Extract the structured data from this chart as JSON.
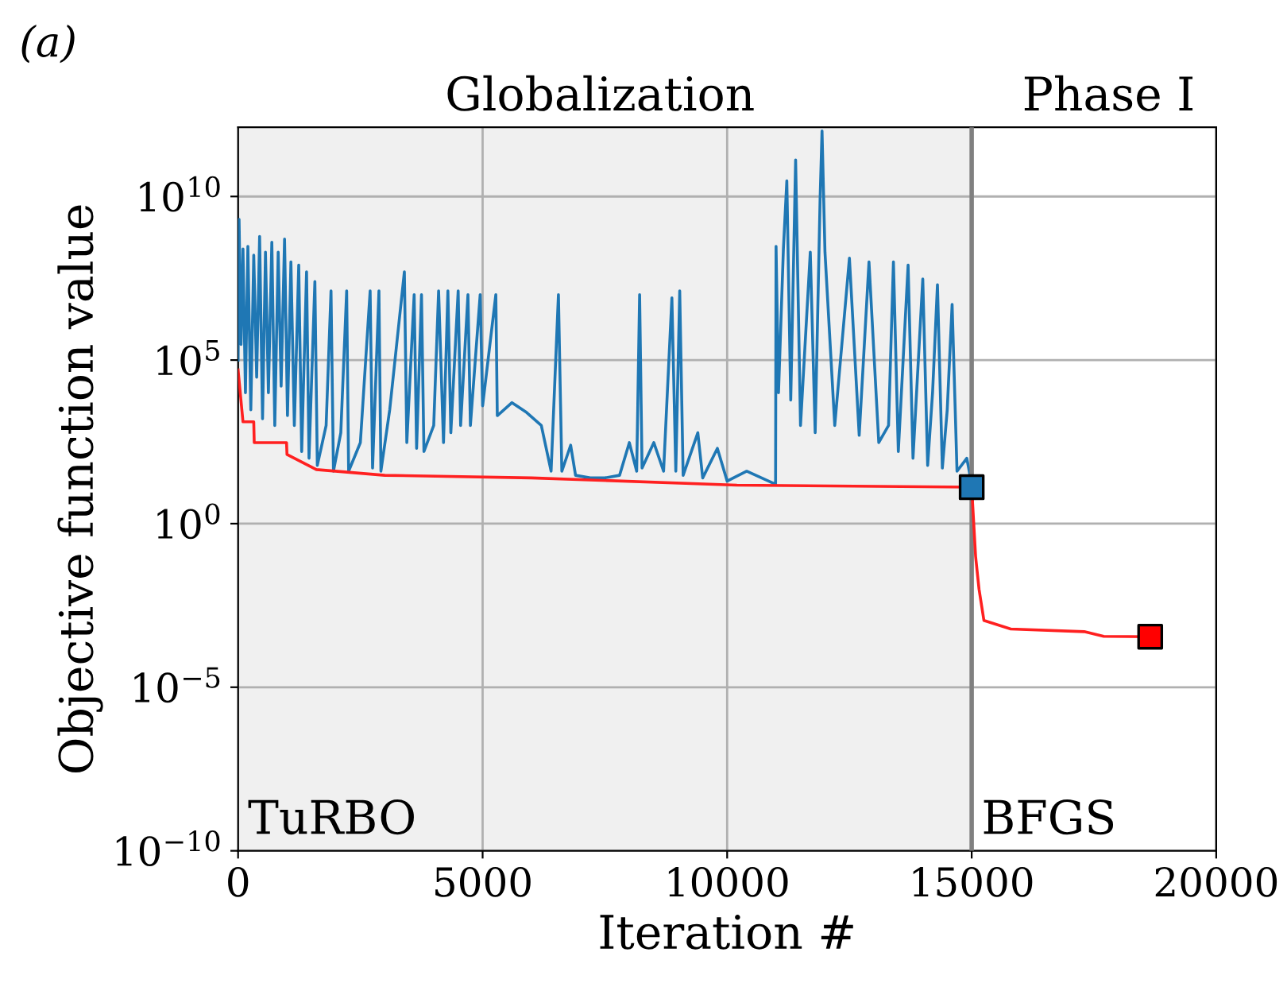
{
  "chart_data": {
    "type": "line",
    "xlabel": "Iteration #",
    "ylabel": "Objective function value",
    "annotations": [
      "(a)",
      "Globalization",
      "Phase I",
      "TuRBO",
      "BFGS"
    ],
    "series": [
      {
        "color": "#1f77b4",
        "x": [
          0,
          20,
          60,
          100,
          150,
          200,
          260,
          320,
          380,
          440,
          500,
          560,
          620,
          690,
          750,
          820,
          880,
          950,
          1010,
          1080,
          1150,
          1240,
          1300,
          1400,
          1450,
          1570,
          1620,
          1800,
          1900,
          1950,
          2100,
          2220,
          2260,
          2500,
          2700,
          2750,
          2880,
          2920,
          3100,
          3400,
          3450,
          3600,
          3650,
          3750,
          3800,
          4000,
          4100,
          4200,
          4290,
          4350,
          4500,
          4550,
          4700,
          4750,
          4950,
          5000,
          5270,
          5300,
          5600,
          5900,
          6200,
          6400,
          6550,
          6620,
          6800,
          6900,
          7200,
          7500,
          7800,
          8000,
          8150,
          8210,
          8260,
          8500,
          8700,
          8870,
          8950,
          9030,
          9100,
          9400,
          9500,
          9800,
          10000,
          10400,
          10990,
          11000,
          11050,
          11150,
          11220,
          11300,
          11400,
          11500,
          11700,
          11800,
          11900,
          11940,
          12000,
          12200,
          12500,
          12700,
          12900,
          13100,
          13300,
          13400,
          13500,
          13700,
          13800,
          14000,
          14100,
          14200,
          14300,
          14400,
          14500,
          14600,
          14700,
          14900,
          15000
        ],
        "values": [
          100000.0,
          2000000000.0,
          300000.0,
          250000000.0,
          10000.0,
          300000000.0,
          3000.0,
          160000000.0,
          30000.0,
          600000000.0,
          1600.0,
          200000000.0,
          10000.0,
          400000000.0,
          1000.0,
          200000000.0,
          16000.0,
          500000000.0,
          2000.0,
          100000000.0,
          1000.0,
          80000000.0,
          160.0,
          50000000.0,
          100.0,
          25000000.0,
          60.0,
          1000.0,
          13000000.0,
          40.0,
          600.0,
          13000000.0,
          40.0,
          300.0,
          13000000.0,
          50.0,
          13000000.0,
          40.0,
          3000.0,
          50000000.0,
          300.0,
          10000000.0,
          200.0,
          10000000.0,
          160.0,
          1000.0,
          13000000.0,
          300.0,
          13000000.0,
          600.0,
          13000000.0,
          1000.0,
          10000000.0,
          1000.0,
          10000000.0,
          4000.0,
          10000000.0,
          2000.0,
          5000.0,
          2500.0,
          1000.0,
          40.0,
          10000000.0,
          40.0,
          250.0,
          30.0,
          25.0,
          25.0,
          30.0,
          300.0,
          40.0,
          10000000.0,
          50.0,
          300.0,
          40.0,
          8000000.0,
          40.0,
          13000000.0,
          30.0,
          600.0,
          25.0,
          200.0,
          20.0,
          40.0,
          16.0,
          300000000.0,
          10000.0,
          250000000.0,
          30000000000.0,
          6000.0,
          130000000000.0,
          1000.0,
          200000000.0,
          600.0,
          8000000000.0,
          1000000000000.0,
          200000000.0,
          1000.0,
          130000000.0,
          500.0,
          100000000.0,
          300.0,
          1000.0,
          100000000.0,
          160.0,
          80000000.0,
          100.0,
          30000000.0,
          60.0,
          10000.0,
          20000000.0,
          50.0,
          3000.0,
          5000000.0,
          40.0,
          100.0,
          16.0
        ]
      },
      {
        "color": "#ff2020",
        "x": [
          0,
          100,
          320,
          330,
          990,
          1000,
          1600,
          3000,
          6000,
          10200,
          15000,
          15080,
          15150,
          15250,
          15800,
          17300,
          17700,
          18650
        ],
        "values": [
          50000.0,
          1300.0,
          1300.0,
          300.0,
          300.0,
          130.0,
          45.0,
          30.0,
          25.0,
          15.0,
          13.0,
          0.1,
          0.01,
          0.0011,
          0.0006,
          0.0005,
          0.00036,
          0.00035
        ]
      },
      {
        "type": "scatter",
        "marker": "square",
        "color": "#1f77b4",
        "x": [
          15000
        ],
        "values": [
          13.0
        ]
      },
      {
        "type": "scatter",
        "marker": "square",
        "color": "#ff0000",
        "x": [
          18650
        ],
        "values": [
          0.00035
        ]
      }
    ],
    "log": "y",
    "xlim": [
      0,
      20000
    ],
    "ylim": [
      1e-10,
      1300000000000.0
    ],
    "xticks": [
      0,
      5000,
      10000,
      15000,
      20000
    ],
    "yticks": [
      {
        "value": 1e-10,
        "label": "10$^{−10}$"
      },
      {
        "value": 1e-05,
        "label": "10$^{−5}$"
      },
      {
        "value": 1,
        "label": "10$^{0}$"
      },
      {
        "value": 100000.0,
        "label": "10$^{5}$"
      },
      {
        "value": 10000000000.0,
        "label": "10$^{10}$"
      }
    ],
    "bands": [
      {
        "axis": "x",
        "from": 0,
        "to": 15000,
        "color": "#f0f0f0"
      }
    ],
    "ref_lines": [
      {
        "axis": "x",
        "value": 15000,
        "color": "#808080"
      }
    ],
    "grid": true,
    "legend": false
  }
}
